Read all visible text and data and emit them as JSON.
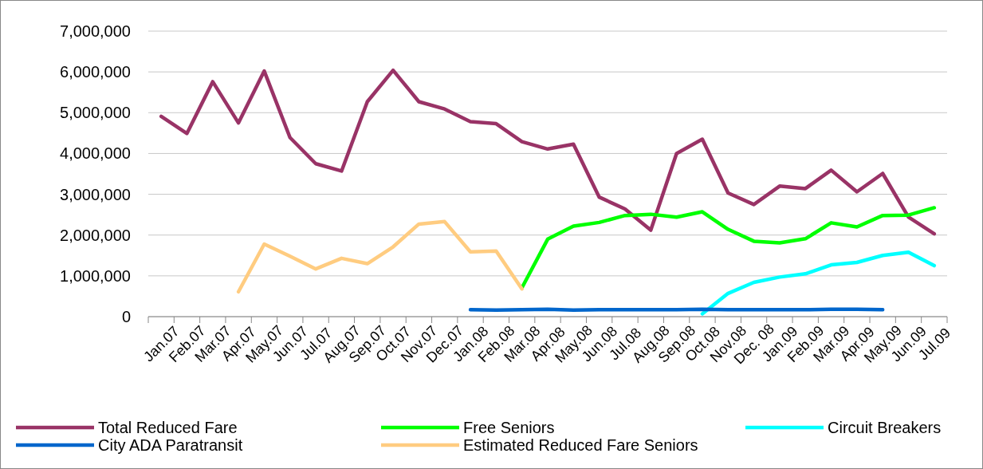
{
  "chart_data": {
    "type": "line",
    "categories": [
      "Jan.07",
      "Feb.07",
      "Mar.07",
      "Apr.07",
      "May.07",
      "Jun.07",
      "Jul.07",
      "Aug.07",
      "Sep.07",
      "Oct.07",
      "Nov.07",
      "Dec.07",
      "Jan.08",
      "Feb.08",
      "Mar.08",
      "Apr.08",
      "May.08",
      "Jun.08",
      "Jul.08",
      "Aug.08",
      "Sep.08",
      "Oct.08",
      "Nov.08",
      "Dec. 08",
      "Jan.09",
      "Feb.09",
      "Mar.09",
      "Apr.09",
      "May.09",
      "Jun.09",
      "Jul.09"
    ],
    "series": [
      {
        "name": "Total Reduced Fare",
        "color": "#993366",
        "values": [
          4910000,
          4490000,
          5760000,
          4750000,
          6020000,
          4390000,
          3750000,
          3570000,
          5270000,
          6040000,
          5270000,
          5090000,
          4780000,
          4730000,
          4290000,
          4110000,
          4230000,
          2930000,
          2640000,
          2120000,
          4000000,
          4350000,
          3030000,
          2750000,
          3200000,
          3140000,
          3590000,
          3060000,
          3510000,
          2440000,
          2030000
        ]
      },
      {
        "name": "Free Seniors",
        "color": "#00ff00",
        "values": [
          null,
          null,
          null,
          null,
          null,
          null,
          null,
          null,
          null,
          null,
          null,
          null,
          null,
          null,
          710000,
          1900000,
          2220000,
          2310000,
          2480000,
          2510000,
          2440000,
          2570000,
          2140000,
          1850000,
          1810000,
          1910000,
          2300000,
          2200000,
          2480000,
          2490000,
          2670000
        ]
      },
      {
        "name": "Circuit Breakers",
        "color": "#00ffff",
        "values": [
          null,
          null,
          null,
          null,
          null,
          null,
          null,
          null,
          null,
          null,
          null,
          null,
          null,
          null,
          null,
          null,
          null,
          null,
          null,
          null,
          null,
          70000,
          570000,
          840000,
          970000,
          1050000,
          1270000,
          1330000,
          1500000,
          1580000,
          1250000
        ]
      },
      {
        "name": "City ADA Paratransit",
        "color": "#0066cc",
        "values": [
          null,
          null,
          null,
          null,
          null,
          null,
          null,
          null,
          null,
          null,
          null,
          null,
          170000,
          160000,
          170000,
          180000,
          160000,
          170000,
          170000,
          170000,
          170000,
          180000,
          170000,
          170000,
          170000,
          170000,
          180000,
          180000,
          170000,
          null,
          null
        ]
      },
      {
        "name": "Estimated Reduced Fare Seniors",
        "color": "#ffcc80",
        "values": [
          null,
          null,
          null,
          610000,
          1780000,
          1480000,
          1170000,
          1430000,
          1300000,
          1710000,
          2270000,
          2330000,
          1590000,
          1610000,
          680000,
          null,
          null,
          null,
          null,
          null,
          null,
          null,
          null,
          null,
          null,
          null,
          null,
          null,
          null,
          null,
          null
        ]
      }
    ],
    "ylim": [
      0,
      7000000
    ],
    "yticks": [
      {
        "value": 0,
        "label": "0"
      },
      {
        "value": 1000000,
        "label": "1,000,000"
      },
      {
        "value": 2000000,
        "label": "2,000,000"
      },
      {
        "value": 3000000,
        "label": "3,000,000"
      },
      {
        "value": 4000000,
        "label": "4,000,000"
      },
      {
        "value": 5000000,
        "label": "5,000,000"
      },
      {
        "value": 6000000,
        "label": "6,000,000"
      },
      {
        "value": 7000000,
        "label": "7,000,000"
      }
    ],
    "grid": "y",
    "legend": "bottom",
    "marker": "none",
    "line_style": "solid"
  }
}
